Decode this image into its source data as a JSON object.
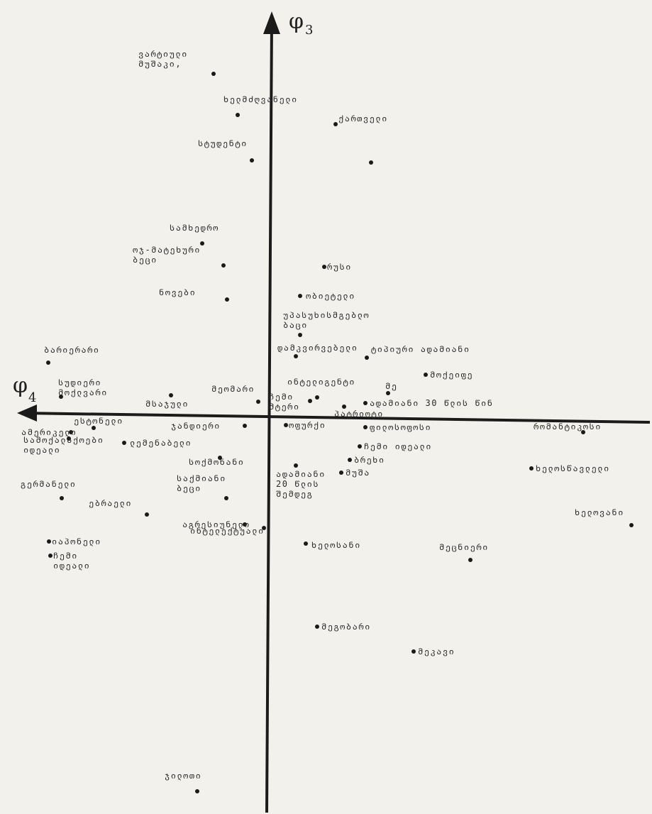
{
  "chart_data": {
    "type": "scatter",
    "title": "",
    "x_axis_label": "φ",
    "x_axis_subscript": "4",
    "y_axis_label": "φ",
    "y_axis_subscript": "3",
    "x_direction": "left",
    "grid": false,
    "legend": "none",
    "points": [
      {
        "x": 76,
        "y": 484,
        "label": [
          "ვარტიული",
          "მუშაკი,"
        ]
      },
      {
        "x": 42,
        "y": 426,
        "label": [
          "ხელმძღვანელი"
        ]
      },
      {
        "x": -96,
        "y": 413,
        "label": [
          "ქართველი"
        ]
      },
      {
        "x": -146,
        "y": 359,
        "label": []
      },
      {
        "x": 22,
        "y": 362,
        "label": [
          "სტუდენტი"
        ]
      },
      {
        "x": 92,
        "y": 245,
        "label": [
          "სამხედრო"
        ]
      },
      {
        "x": 62,
        "y": 214,
        "label": [
          "ოჯ-მატეხური",
          "ბეცი"
        ]
      },
      {
        "x": -80,
        "y": 212,
        "label": [
          "რუსი"
        ]
      },
      {
        "x": 57,
        "y": 166,
        "label": [
          "ნოვები"
        ]
      },
      {
        "x": -46,
        "y": 171,
        "label": [
          "ობიეტელი"
        ]
      },
      {
        "x": -46,
        "y": 116,
        "label": [
          "უპასუხისმგებლო",
          "ბაცი"
        ]
      },
      {
        "x": -40,
        "y": 86,
        "label": [
          "დამკვირვებელი"
        ]
      },
      {
        "x": -140,
        "y": 84,
        "label": [
          "ტიპიური ადამიანი"
        ]
      },
      {
        "x": 309,
        "y": 77,
        "label": [
          "ბარიერარი"
        ]
      },
      {
        "x": -223,
        "y": 60,
        "label": [
          "მოქეიფე"
        ]
      },
      {
        "x": 291,
        "y": 29,
        "label": [
          "სუდიერი",
          "მოქლვარი"
        ]
      },
      {
        "x": 136,
        "y": 31,
        "label": [
          "მსაჯული"
        ]
      },
      {
        "x": 13,
        "y": 22,
        "label": [
          "მეომარი"
        ]
      },
      {
        "x": -70,
        "y": 28,
        "label": [
          "ინტელიგენტი"
        ]
      },
      {
        "x": -170,
        "y": 34,
        "label": [
          "მე"
        ]
      },
      {
        "x": -60,
        "y": 23,
        "label": [
          "ჩემი",
          "მტერი"
        ]
      },
      {
        "x": -138,
        "y": 20,
        "label": [
          "ადამიანი 30 წლის წინ"
        ]
      },
      {
        "x": -108,
        "y": 15,
        "label": [
          "პატრიოტი"
        ]
      },
      {
        "x": 32,
        "y": -12,
        "label": [
          "ჯანდიერი"
        ]
      },
      {
        "x": -26,
        "y": -11,
        "label": [
          "ოფურქი"
        ]
      },
      {
        "x": -138,
        "y": -14,
        "label": [
          "ფილოსოფოსი"
        ]
      },
      {
        "x": 277,
        "y": -21,
        "label": [
          "ამერიკელი"
        ]
      },
      {
        "x": 245,
        "y": -15,
        "label": [
          "ესტონელი"
        ]
      },
      {
        "x": 202,
        "y": -36,
        "label": [
          "ლემენაბელი"
        ]
      },
      {
        "x": 280,
        "y": -30,
        "label": [
          "სამოქალაქოები",
          "იდეალი"
        ]
      },
      {
        "x": -445,
        "y": -21,
        "label": [
          "რომანტიკოსი"
        ]
      },
      {
        "x": -130,
        "y": -41,
        "label": [
          "ჩემი იდეალი"
        ]
      },
      {
        "x": 67,
        "y": -57,
        "label": [
          "სოქმონანი"
        ]
      },
      {
        "x": -116,
        "y": -60,
        "label": [
          "ბრეხი"
        ]
      },
      {
        "x": -40,
        "y": -68,
        "label": [
          "ადამიანი",
          "20 წლის",
          "შემდეგ"
        ]
      },
      {
        "x": -104,
        "y": -78,
        "label": [
          "მუშა"
        ]
      },
      {
        "x": -372,
        "y": -72,
        "label": [
          "ხელოსწავლელი"
        ]
      },
      {
        "x": 290,
        "y": -114,
        "label": [
          "გერმანელი"
        ]
      },
      {
        "x": 170,
        "y": -137,
        "label": [
          "ებრაელი"
        ]
      },
      {
        "x": 58,
        "y": -114,
        "label": [
          "საქმიანი",
          "ბეცი"
        ]
      },
      {
        "x": 32,
        "y": -151,
        "label": [
          "აგრესიუნელი"
        ]
      },
      {
        "x": 5,
        "y": -156,
        "label": [
          "ინტელექტუალი"
        ]
      },
      {
        "x": -513,
        "y": -152,
        "label": [
          "ხელოვანი"
        ]
      },
      {
        "x": 308,
        "y": -175,
        "label": [
          "იაპონელი"
        ]
      },
      {
        "x": 306,
        "y": -195,
        "label": [
          "ჩემი",
          "იდეალი"
        ]
      },
      {
        "x": -54,
        "y": -178,
        "label": [
          "ხელოსანი"
        ]
      },
      {
        "x": -286,
        "y": -201,
        "label": [
          "მეცნიერი"
        ]
      },
      {
        "x": -70,
        "y": -295,
        "label": [
          "მეგობარი"
        ]
      },
      {
        "x": -206,
        "y": -330,
        "label": [
          "მეკავი"
        ]
      },
      {
        "x": 99,
        "y": -527,
        "label": [
          "ჯილოთი"
        ]
      }
    ]
  }
}
